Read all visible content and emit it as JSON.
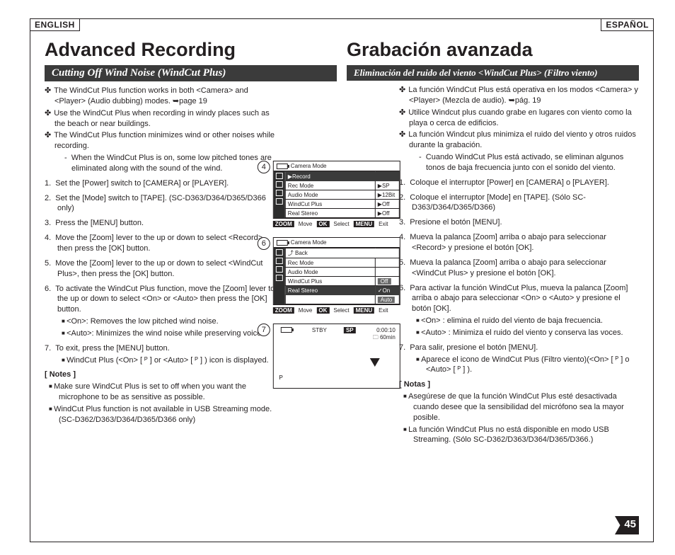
{
  "page_number": "45",
  "lang_labels": {
    "en": "ENGLISH",
    "es": "ESPAÑOL"
  },
  "en": {
    "title": "Advanced Recording",
    "subtitle": "Cutting Off Wind Noise (WindCut Plus)",
    "intro": [
      "The WindCut Plus function works in both <Camera> and <Player> (Audio dubbing) modes. ➥page 19",
      "Use the WindCut Plus when recording in windy places such as the beach or near buildings.",
      "The WindCut Plus function minimizes wind or other noises while recording."
    ],
    "intro_dash": "When the WindCut Plus is on, some low pitched tones are eliminated along with the sound of the wind.",
    "steps": [
      "Set the [Power] switch to [CAMERA] or [PLAYER].",
      "Set the [Mode] switch to [TAPE]. (SC-D363/D364/D365/D366 only)",
      "Press the [MENU] button.",
      "Move the [Zoom] lever to the up or down to select <Record>, then press the [OK] button.",
      "Move the [Zoom] lever to the up or down to select <WindCut Plus>, then press the [OK] button.",
      "To activate the WindCut Plus function, move the [Zoom] lever to the up or down to select <On> or <Auto> then press the [OK] button.",
      "To exit, press the [MENU] button."
    ],
    "step6_sub": [
      "<On>: Removes the low pitched wind noise.",
      "<Auto>: Minimizes the wind noise while preserving voices."
    ],
    "step7_sub": "WindCut Plus (<On> [ ᴾ ]   or <Auto> [ ᴾ ] ) icon is displayed.",
    "notes_h": "[ Notes ]",
    "notes": [
      "Make sure WindCut Plus is set to off when you want the microphone to be as sensitive as possible.",
      "WindCut Plus function is not available in USB Streaming mode. (SC-D362/D363/D364/D365/D366 only)"
    ]
  },
  "es": {
    "title": "Grabación avanzada",
    "subtitle": "Eliminación del ruido del viento <WindCut Plus> (Filtro viento)",
    "intro": [
      "La función WindCut Plus está operativa en los modos <Camera> y <Player> (Mezcla de audio). ➥pág. 19",
      "Utilice Windcut plus cuando grabe en lugares con viento como la playa o cerca de edificios.",
      "La función Windcut plus minimiza el ruido del viento y otros ruidos durante la grabación."
    ],
    "intro_dash": "Cuando WindCut Plus está activado, se eliminan algunos tonos de baja frecuencia junto con el sonido del viento.",
    "steps": [
      "Coloque el interruptor [Power] en [CAMERA] o [PLAYER].",
      "Coloque el interruptor [Mode] en [TAPE]. (Sólo SC-D363/D364/D365/D366)",
      "Presione el botón [MENU].",
      "Mueva la palanca [Zoom] arriba o abajo para seleccionar <Record> y presione el botón [OK].",
      "Mueva la palanca [Zoom] arriba o abajo para seleccionar <WindCut Plus> y presione el botón [OK].",
      "Para activar la función WindCut Plus, mueva la palanca [Zoom] arriba o abajo para seleccionar <On> o <Auto> y presione el botón [OK].",
      "Para salir, presione el botón [MENU]."
    ],
    "step6_sub": [
      "<On> : elimina el ruido del viento de baja frecuencia.",
      "<Auto> : Minimiza el ruido del viento y conserva las voces."
    ],
    "step7_sub": "Aparece el icono de WindCut Plus (Filtro viento)(<On> [ ᴾ ]  o <Auto> [ ᴾ ] ).",
    "notes_h": "[ Notas ]",
    "notes": [
      "Asegúrese de que la función WindCut Plus esté desactivada cuando desee que la sensibilidad del micrófono sea la mayor posible.",
      "La función WindCut Plus no está disponible en modo USB Streaming. (Sólo SC-D362/D363/D364/D365/D366.)"
    ]
  },
  "figs": {
    "f4": {
      "num": "4",
      "title": "Camera Mode",
      "sub": "▶Record",
      "rows": [
        {
          "l": "Rec Mode",
          "v": "▶SP"
        },
        {
          "l": "Audio Mode",
          "v": "▶12Bit"
        },
        {
          "l": "WindCut Plus",
          "v": "▶Off"
        },
        {
          "l": "Real Stereo",
          "v": "▶Off"
        }
      ],
      "ftr": {
        "zoom": "ZOOM",
        "move": "Move",
        "ok": "OK",
        "select": "Select",
        "menu": "MENU",
        "exit": "Exit"
      }
    },
    "f6": {
      "num": "6",
      "title": "Camera Mode",
      "sub": "⤴ Back",
      "rows": [
        {
          "l": "Rec Mode",
          "v": ""
        },
        {
          "l": "Audio Mode",
          "v": ""
        },
        {
          "l": "WindCut Plus",
          "v": "Off",
          "sel": false
        },
        {
          "l": "Real Stereo",
          "v": "✓On",
          "sel": true
        },
        {
          "l": "",
          "v": "Auto",
          "sel": false,
          "gray": true
        }
      ],
      "ftr": {
        "zoom": "ZOOM",
        "move": "Move",
        "ok": "OK",
        "select": "Select",
        "menu": "MENU",
        "exit": "Exit"
      }
    },
    "f7": {
      "num": "7",
      "stby": "STBY",
      "sp": "SP",
      "time": "0:00:10",
      "remain": "60min"
    }
  }
}
